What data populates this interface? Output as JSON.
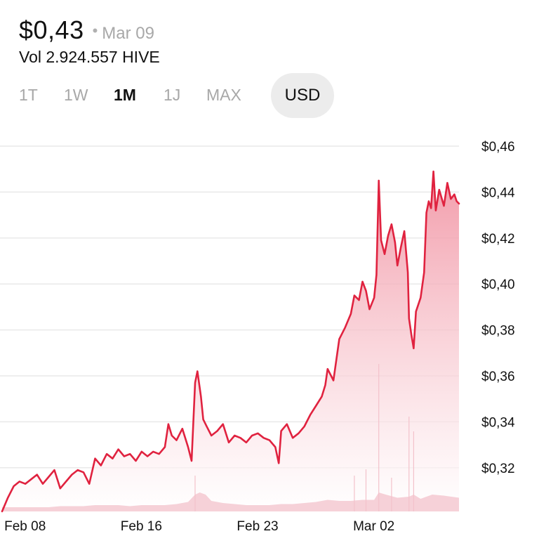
{
  "header": {
    "price": "$0,43",
    "separator": "•",
    "date": "Mar 09",
    "volume": "Vol 2.924.557 HIVE"
  },
  "tabs": [
    {
      "label": "1T",
      "active": false
    },
    {
      "label": "1W",
      "active": false
    },
    {
      "label": "1M",
      "active": true
    },
    {
      "label": "1J",
      "active": false
    },
    {
      "label": "MAX",
      "active": false
    }
  ],
  "currency": "USD",
  "colors": {
    "line": "#e0223f",
    "area_top": "#f08a9b",
    "area_bottom": "#ffffff",
    "volume": "#f3c2cb",
    "grid": "#e9e9e9"
  },
  "chart_data": {
    "type": "area",
    "ylim": [
      0.3,
      0.46
    ],
    "y_ticks": [
      {
        "value": 0.46,
        "label": "$0,46"
      },
      {
        "value": 0.44,
        "label": "$0,44"
      },
      {
        "value": 0.42,
        "label": "$0,42"
      },
      {
        "value": 0.4,
        "label": "$0,40"
      },
      {
        "value": 0.38,
        "label": "$0,38"
      },
      {
        "value": 0.36,
        "label": "$0,36"
      },
      {
        "value": 0.34,
        "label": "$0,34"
      },
      {
        "value": 0.32,
        "label": "$0,32"
      }
    ],
    "x_range": [
      0,
      39.3
    ],
    "x_ticks": [
      {
        "x": 2,
        "label": "Feb 08"
      },
      {
        "x": 12,
        "label": "Feb 16"
      },
      {
        "x": 22,
        "label": "Feb 23"
      },
      {
        "x": 32,
        "label": "Mar 02"
      }
    ],
    "series": [
      {
        "values": [
          [
            0.0,
            0.301
          ],
          [
            0.5,
            0.307
          ],
          [
            1.0,
            0.312
          ],
          [
            1.5,
            0.314
          ],
          [
            2.0,
            0.313
          ],
          [
            2.5,
            0.315
          ],
          [
            3.0,
            0.317
          ],
          [
            3.5,
            0.313
          ],
          [
            4.0,
            0.316
          ],
          [
            4.5,
            0.319
          ],
          [
            5.0,
            0.311
          ],
          [
            5.5,
            0.314
          ],
          [
            6.0,
            0.317
          ],
          [
            6.5,
            0.319
          ],
          [
            7.0,
            0.318
          ],
          [
            7.5,
            0.313
          ],
          [
            8.0,
            0.324
          ],
          [
            8.5,
            0.321
          ],
          [
            9.0,
            0.326
          ],
          [
            9.5,
            0.324
          ],
          [
            10.0,
            0.328
          ],
          [
            10.5,
            0.325
          ],
          [
            11.0,
            0.326
          ],
          [
            11.5,
            0.323
          ],
          [
            12.0,
            0.327
          ],
          [
            12.5,
            0.325
          ],
          [
            13.0,
            0.327
          ],
          [
            13.5,
            0.326
          ],
          [
            14.0,
            0.329
          ],
          [
            14.3,
            0.339
          ],
          [
            14.6,
            0.334
          ],
          [
            15.0,
            0.332
          ],
          [
            15.5,
            0.337
          ],
          [
            16.0,
            0.329
          ],
          [
            16.3,
            0.323
          ],
          [
            16.6,
            0.357
          ],
          [
            16.8,
            0.362
          ],
          [
            17.1,
            0.351
          ],
          [
            17.3,
            0.341
          ],
          [
            17.6,
            0.338
          ],
          [
            18.0,
            0.334
          ],
          [
            18.5,
            0.336
          ],
          [
            19.0,
            0.339
          ],
          [
            19.5,
            0.331
          ],
          [
            20.0,
            0.334
          ],
          [
            20.5,
            0.333
          ],
          [
            21.0,
            0.331
          ],
          [
            21.5,
            0.334
          ],
          [
            22.0,
            0.335
          ],
          [
            22.5,
            0.333
          ],
          [
            23.0,
            0.332
          ],
          [
            23.5,
            0.329
          ],
          [
            23.8,
            0.322
          ],
          [
            24.0,
            0.336
          ],
          [
            24.5,
            0.339
          ],
          [
            25.0,
            0.333
          ],
          [
            25.5,
            0.335
          ],
          [
            26.0,
            0.338
          ],
          [
            26.5,
            0.343
          ],
          [
            27.0,
            0.347
          ],
          [
            27.5,
            0.351
          ],
          [
            27.8,
            0.356
          ],
          [
            28.0,
            0.363
          ],
          [
            28.5,
            0.358
          ],
          [
            29.0,
            0.376
          ],
          [
            29.5,
            0.381
          ],
          [
            30.0,
            0.387
          ],
          [
            30.3,
            0.395
          ],
          [
            30.7,
            0.393
          ],
          [
            31.0,
            0.401
          ],
          [
            31.3,
            0.397
          ],
          [
            31.6,
            0.389
          ],
          [
            32.0,
            0.394
          ],
          [
            32.2,
            0.404
          ],
          [
            32.4,
            0.445
          ],
          [
            32.6,
            0.419
          ],
          [
            32.9,
            0.413
          ],
          [
            33.2,
            0.421
          ],
          [
            33.5,
            0.426
          ],
          [
            33.8,
            0.418
          ],
          [
            34.0,
            0.408
          ],
          [
            34.3,
            0.416
          ],
          [
            34.6,
            0.423
          ],
          [
            34.9,
            0.405
          ],
          [
            35.0,
            0.385
          ],
          [
            35.2,
            0.378
          ],
          [
            35.4,
            0.372
          ],
          [
            35.6,
            0.388
          ],
          [
            36.0,
            0.394
          ],
          [
            36.3,
            0.405
          ],
          [
            36.5,
            0.431
          ],
          [
            36.7,
            0.436
          ],
          [
            36.9,
            0.433
          ],
          [
            37.1,
            0.449
          ],
          [
            37.3,
            0.432
          ],
          [
            37.6,
            0.441
          ],
          [
            38.0,
            0.434
          ],
          [
            38.3,
            0.444
          ],
          [
            38.6,
            0.437
          ],
          [
            38.9,
            0.439
          ],
          [
            39.1,
            0.436
          ],
          [
            39.3,
            0.435
          ]
        ]
      }
    ],
    "volume": {
      "values": [
        [
          0.0,
          0.2
        ],
        [
          1.0,
          0.2
        ],
        [
          2.0,
          0.2
        ],
        [
          3.0,
          0.2
        ],
        [
          4.0,
          0.2
        ],
        [
          5.0,
          0.25
        ],
        [
          6.0,
          0.25
        ],
        [
          7.0,
          0.25
        ],
        [
          8.0,
          0.3
        ],
        [
          9.0,
          0.3
        ],
        [
          10.0,
          0.3
        ],
        [
          11.0,
          0.25
        ],
        [
          12.0,
          0.3
        ],
        [
          13.0,
          0.3
        ],
        [
          14.0,
          0.3
        ],
        [
          15.0,
          0.35
        ],
        [
          16.0,
          0.45
        ],
        [
          16.6,
          0.8
        ],
        [
          17.0,
          0.9
        ],
        [
          17.5,
          0.8
        ],
        [
          18.0,
          0.5
        ],
        [
          19.0,
          0.4
        ],
        [
          20.0,
          0.35
        ],
        [
          21.0,
          0.3
        ],
        [
          22.0,
          0.3
        ],
        [
          23.0,
          0.3
        ],
        [
          24.0,
          0.35
        ],
        [
          25.0,
          0.35
        ],
        [
          26.0,
          0.4
        ],
        [
          27.0,
          0.45
        ],
        [
          28.0,
          0.55
        ],
        [
          29.0,
          0.5
        ],
        [
          30.0,
          0.5
        ],
        [
          31.0,
          0.55
        ],
        [
          32.0,
          0.55
        ],
        [
          32.4,
          0.9
        ],
        [
          33.0,
          0.8
        ],
        [
          34.0,
          0.65
        ],
        [
          35.0,
          0.7
        ],
        [
          35.4,
          0.8
        ],
        [
          36.0,
          0.6
        ],
        [
          37.0,
          0.8
        ],
        [
          38.0,
          0.75
        ],
        [
          39.3,
          0.65
        ]
      ],
      "spikes": [
        [
          32.4,
          7.0
        ],
        [
          35.0,
          4.5
        ],
        [
          35.4,
          3.8
        ],
        [
          31.3,
          2.0
        ],
        [
          30.3,
          1.7
        ],
        [
          33.5,
          1.6
        ],
        [
          16.6,
          1.7
        ]
      ]
    }
  }
}
